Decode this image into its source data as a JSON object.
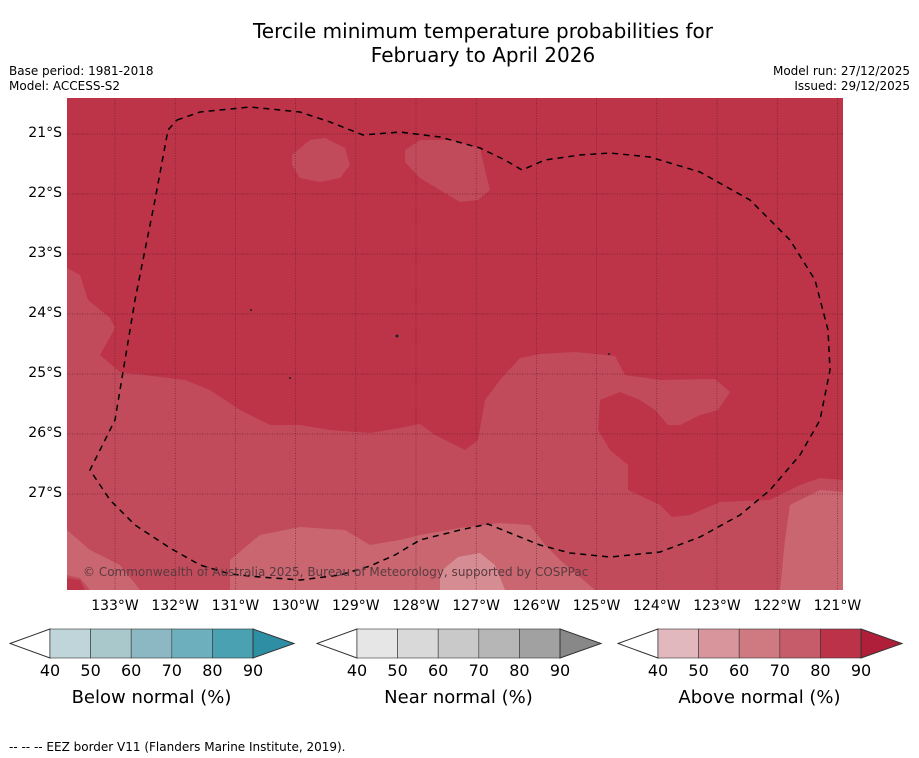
{
  "title": {
    "line1": "Tercile minimum temperature probabilities for",
    "line2": "February to April 2026"
  },
  "base_period": "Base period: 1981-2018",
  "model": "Model: ACCESS-S2",
  "model_run": "Model run: 27/12/2025",
  "issued": "Issued: 29/12/2025",
  "map": {
    "lat_labels": [
      "21°S",
      "22°S",
      "23°S",
      "24°S",
      "25°S",
      "26°S",
      "27°S"
    ],
    "lon_labels": [
      "133°W",
      "132°W",
      "131°W",
      "130°W",
      "129°W",
      "128°W",
      "127°W",
      "126°W",
      "125°W",
      "124°W",
      "123°W",
      "122°W",
      "121°W"
    ],
    "copyright": "© Commonwealth of Australia 2025, Bureau of Meteorology, supported by COSPPac",
    "colors": {
      "80-90": "#bd3449",
      "70-80": "#c24b5b",
      "60-70": "#c96670",
      "50-60": "#d68c93"
    }
  },
  "colorbars": [
    {
      "label": "Below normal (%)",
      "ticks": [
        "40",
        "50",
        "60",
        "70",
        "80",
        "90"
      ],
      "colors": [
        "#c0d5da",
        "#a9c8cc",
        "#8cb8c3",
        "#6dafbc",
        "#4aa1b1",
        "#2e8ea3"
      ]
    },
    {
      "label": "Near normal (%)",
      "ticks": [
        "40",
        "50",
        "60",
        "70",
        "80",
        "90"
      ],
      "colors": [
        "#e6e6e6",
        "#d9d9d9",
        "#c9c9c9",
        "#b6b6b6",
        "#a1a1a1",
        "#888888"
      ]
    },
    {
      "label": "Above normal (%)",
      "ticks": [
        "40",
        "50",
        "60",
        "70",
        "80",
        "90"
      ],
      "colors": [
        "#e2b8bf",
        "#d9959c",
        "#cf7a81",
        "#c65b69",
        "#bc3349",
        "#b01f3a"
      ]
    }
  ],
  "footer": "--  --  -- EEZ border V11 (Flanders Marine Institute, 2019)."
}
